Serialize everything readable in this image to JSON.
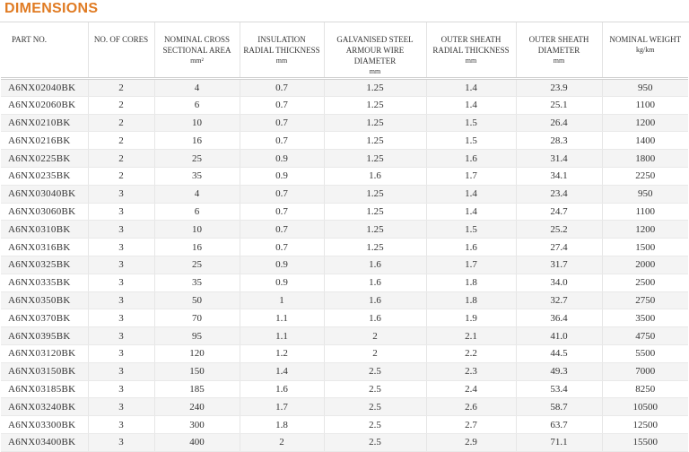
{
  "title": "DIMENSIONS",
  "columns": [
    {
      "label": "PART NO.",
      "unit": ""
    },
    {
      "label": "NO. OF CORES",
      "unit": ""
    },
    {
      "label": "NOMINAL CROSS SECTIONAL AREA",
      "unit": "mm²"
    },
    {
      "label": "INSULATION RADIAL THICKNESS",
      "unit": "mm"
    },
    {
      "label": "GALVANISED STEEL ARMOUR WIRE DIAMETER",
      "unit": "mm"
    },
    {
      "label": "OUTER SHEATH RADIAL THICKNESS",
      "unit": "mm"
    },
    {
      "label": "OUTER SHEATH DIAMETER",
      "unit": "mm"
    },
    {
      "label": "NOMINAL WEIGHT",
      "unit": "kg/km"
    }
  ],
  "rows": [
    [
      "A6NX02040BK",
      "2",
      "4",
      "0.7",
      "1.25",
      "1.4",
      "23.9",
      "950"
    ],
    [
      "A6NX02060BK",
      "2",
      "6",
      "0.7",
      "1.25",
      "1.4",
      "25.1",
      "1100"
    ],
    [
      "A6NX0210BK",
      "2",
      "10",
      "0.7",
      "1.25",
      "1.5",
      "26.4",
      "1200"
    ],
    [
      "A6NX0216BK",
      "2",
      "16",
      "0.7",
      "1.25",
      "1.5",
      "28.3",
      "1400"
    ],
    [
      "A6NX0225BK",
      "2",
      "25",
      "0.9",
      "1.25",
      "1.6",
      "31.4",
      "1800"
    ],
    [
      "A6NX0235BK",
      "2",
      "35",
      "0.9",
      "1.6",
      "1.7",
      "34.1",
      "2250"
    ],
    [
      "A6NX03040BK",
      "3",
      "4",
      "0.7",
      "1.25",
      "1.4",
      "23.4",
      "950"
    ],
    [
      "A6NX03060BK",
      "3",
      "6",
      "0.7",
      "1.25",
      "1.4",
      "24.7",
      "1100"
    ],
    [
      "A6NX0310BK",
      "3",
      "10",
      "0.7",
      "1.25",
      "1.5",
      "25.2",
      "1200"
    ],
    [
      "A6NX0316BK",
      "3",
      "16",
      "0.7",
      "1.25",
      "1.6",
      "27.4",
      "1500"
    ],
    [
      "A6NX0325BK",
      "3",
      "25",
      "0.9",
      "1.6",
      "1.7",
      "31.7",
      "2000"
    ],
    [
      "A6NX0335BK",
      "3",
      "35",
      "0.9",
      "1.6",
      "1.8",
      "34.0",
      "2500"
    ],
    [
      "A6NX0350BK",
      "3",
      "50",
      "1",
      "1.6",
      "1.8",
      "32.7",
      "2750"
    ],
    [
      "A6NX0370BK",
      "3",
      "70",
      "1.1",
      "1.6",
      "1.9",
      "36.4",
      "3500"
    ],
    [
      "A6NX0395BK",
      "3",
      "95",
      "1.1",
      "2",
      "2.1",
      "41.0",
      "4750"
    ],
    [
      "A6NX03120BK",
      "3",
      "120",
      "1.2",
      "2",
      "2.2",
      "44.5",
      "5500"
    ],
    [
      "A6NX03150BK",
      "3",
      "150",
      "1.4",
      "2.5",
      "2.3",
      "49.3",
      "7000"
    ],
    [
      "A6NX03185BK",
      "3",
      "185",
      "1.6",
      "2.5",
      "2.4",
      "53.4",
      "8250"
    ],
    [
      "A6NX03240BK",
      "3",
      "240",
      "1.7",
      "2.5",
      "2.6",
      "58.7",
      "10500"
    ],
    [
      "A6NX03300BK",
      "3",
      "300",
      "1.8",
      "2.5",
      "2.7",
      "63.7",
      "12500"
    ],
    [
      "A6NX03400BK",
      "3",
      "400",
      "2",
      "2.5",
      "2.9",
      "71.1",
      "15500"
    ]
  ],
  "colors": {
    "title": "#e07b23",
    "stripe": "#f4f4f4"
  }
}
